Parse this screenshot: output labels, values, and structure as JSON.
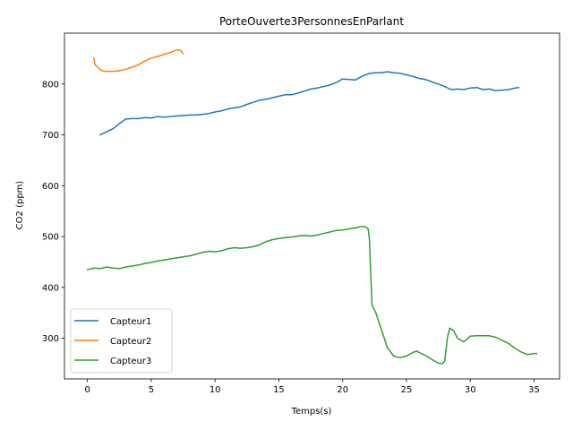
{
  "chart_data": {
    "type": "line",
    "title": "PorteOuverte3PersonnesEnParlant",
    "xlabel": "Temps(s)",
    "ylabel": "CO2 (ppm)",
    "xlim": [
      -1.8,
      37.0
    ],
    "ylim": [
      220,
      900
    ],
    "xticks": [
      0,
      5,
      10,
      15,
      20,
      25,
      30,
      35
    ],
    "yticks": [
      300,
      400,
      500,
      600,
      700,
      800
    ],
    "grid": false,
    "legend_position": "lower-left",
    "series": [
      {
        "name": "Capteur1",
        "color": "#1f77b4",
        "x": [
          1.0,
          1.5,
          2.0,
          2.5,
          3.0,
          3.5,
          4.0,
          4.5,
          5.0,
          5.5,
          6.0,
          6.5,
          7.0,
          7.5,
          8.0,
          8.5,
          9.0,
          9.5,
          10.0,
          10.5,
          11.0,
          11.5,
          12.0,
          12.5,
          13.0,
          13.5,
          14.0,
          14.5,
          15.0,
          15.5,
          16.0,
          16.5,
          17.0,
          17.5,
          18.0,
          18.5,
          19.0,
          19.5,
          20.0,
          20.5,
          21.0,
          21.5,
          22.0,
          22.5,
          23.0,
          23.5,
          24.0,
          24.5,
          25.0,
          25.5,
          26.0,
          26.5,
          27.0,
          27.5,
          28.0,
          28.5,
          29.0,
          29.5,
          30.0,
          30.5,
          31.0,
          31.5,
          32.0,
          32.5,
          33.0,
          33.5,
          33.8
        ],
        "y": [
          700,
          706,
          712,
          722,
          731,
          732,
          732,
          734,
          733,
          736,
          735,
          736,
          737,
          738,
          739,
          739,
          740,
          742,
          745,
          747,
          751,
          753,
          755,
          760,
          764,
          768,
          770,
          773,
          776,
          779,
          779,
          782,
          786,
          790,
          792,
          795,
          798,
          803,
          810,
          809,
          808,
          815,
          820,
          822,
          822,
          824,
          822,
          821,
          818,
          815,
          811,
          809,
          804,
          800,
          795,
          789,
          790,
          789,
          792,
          793,
          789,
          790,
          787,
          788,
          789,
          792,
          793
        ]
      },
      {
        "name": "Capteur2",
        "color": "#ff7f0e",
        "x": [
          0.5,
          0.6,
          0.8,
          1.0,
          1.2,
          1.5,
          2.0,
          2.5,
          3.0,
          3.5,
          4.0,
          4.5,
          5.0,
          5.5,
          6.0,
          6.5,
          7.0,
          7.3,
          7.5
        ],
        "y": [
          851,
          838,
          833,
          828,
          826,
          825,
          825,
          826,
          829,
          833,
          838,
          845,
          851,
          854,
          858,
          862,
          867,
          866,
          860
        ]
      },
      {
        "name": "Capteur3",
        "color": "#2ca02c",
        "x": [
          0.0,
          0.5,
          1.0,
          1.5,
          2.0,
          2.5,
          3.0,
          3.5,
          4.0,
          4.5,
          5.0,
          5.5,
          6.0,
          6.5,
          7.0,
          7.5,
          8.0,
          8.5,
          9.0,
          9.5,
          10.0,
          10.5,
          11.0,
          11.5,
          12.0,
          12.5,
          13.0,
          13.5,
          14.0,
          14.5,
          15.0,
          15.5,
          16.0,
          16.5,
          17.0,
          17.5,
          18.0,
          18.5,
          19.0,
          19.5,
          20.0,
          20.5,
          21.0,
          21.5,
          21.8,
          22.0,
          22.1,
          22.3,
          22.6,
          23.0,
          23.5,
          24.0,
          24.5,
          25.0,
          25.5,
          25.8,
          26.0,
          26.5,
          27.0,
          27.5,
          27.8,
          28.0,
          28.2,
          28.4,
          28.7,
          29.0,
          29.5,
          30.0,
          30.5,
          31.0,
          31.5,
          32.0,
          32.5,
          33.0,
          33.5,
          34.0,
          34.5,
          35.0,
          35.2
        ],
        "y": [
          435,
          438,
          437,
          440,
          438,
          437,
          440,
          442,
          444,
          447,
          449,
          452,
          454,
          456,
          458,
          460,
          462,
          465,
          469,
          471,
          470,
          472,
          476,
          478,
          477,
          478,
          480,
          484,
          490,
          494,
          496,
          498,
          499,
          501,
          502,
          501,
          503,
          506,
          509,
          512,
          513,
          515,
          517,
          520,
          519,
          515,
          495,
          365,
          350,
          320,
          282,
          265,
          262,
          265,
          272,
          275,
          272,
          266,
          258,
          251,
          250,
          255,
          300,
          320,
          315,
          300,
          293,
          304,
          305,
          305,
          305,
          302,
          296,
          290,
          280,
          273,
          268,
          270,
          270
        ]
      }
    ]
  }
}
